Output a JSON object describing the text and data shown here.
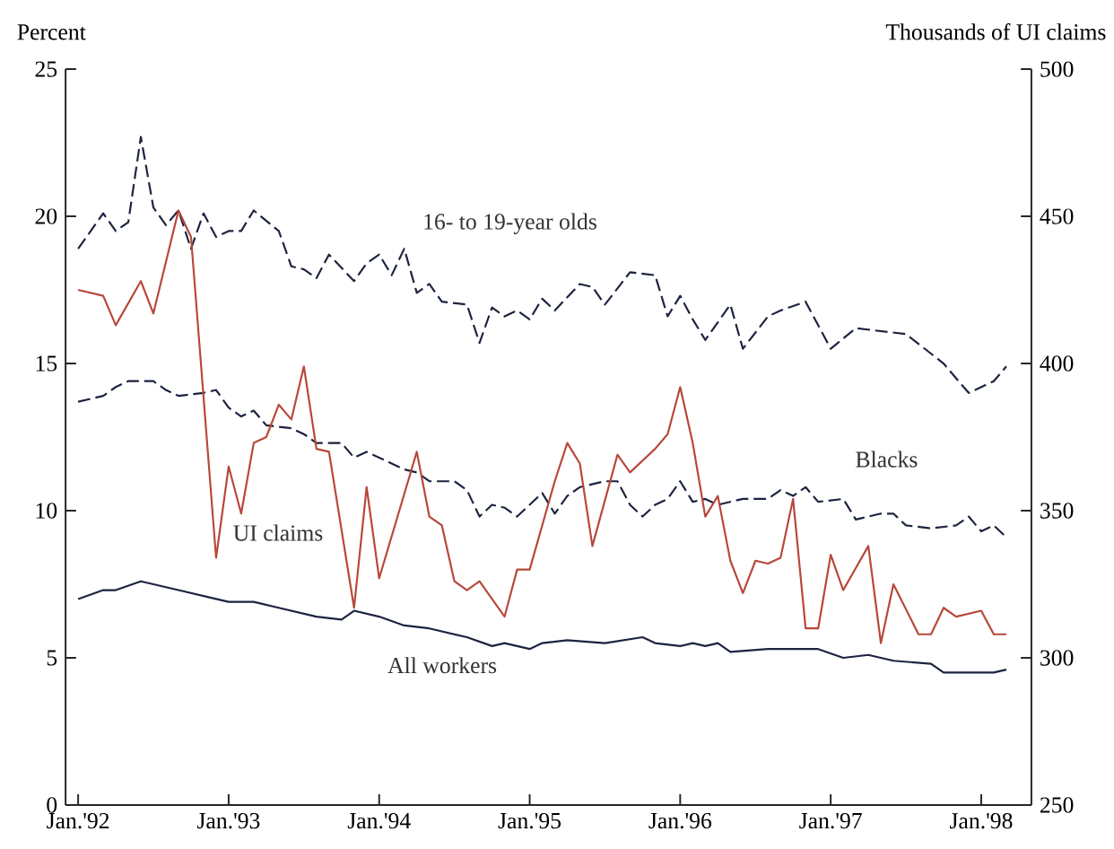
{
  "chart_data": {
    "type": "line",
    "ylabel": "Percent",
    "y2label": "Thousands of UI claims",
    "xlim": [
      "1991-12",
      "1998-05"
    ],
    "xticks": [
      {
        "value": "1992-01",
        "label": "Jan.'92"
      },
      {
        "value": "1993-01",
        "label": "Jan.'93"
      },
      {
        "value": "1994-01",
        "label": "Jan.'94"
      },
      {
        "value": "1995-01",
        "label": "Jan.'95"
      },
      {
        "value": "1996-01",
        "label": "Jan.'96"
      },
      {
        "value": "1997-01",
        "label": "Jan.'97"
      },
      {
        "value": "1998-01",
        "label": "Jan.'98"
      }
    ],
    "ylim": [
      0,
      25
    ],
    "yticks": [
      0,
      5,
      10,
      15,
      20,
      25
    ],
    "y2lim": [
      250,
      500
    ],
    "y2ticks": [
      250,
      300,
      350,
      400,
      450,
      500
    ],
    "series": [
      {
        "name": "16- to 19-year olds",
        "color": "#1c2340",
        "line_style": "dashed",
        "x": [
          "1992-01",
          "1992-03",
          "1992-04",
          "1992-05",
          "1992-06",
          "1992-07",
          "1992-08",
          "1992-09",
          "1992-10",
          "1992-11",
          "1992-12",
          "1993-01",
          "1993-02",
          "1993-03",
          "1993-05",
          "1993-06",
          "1993-07",
          "1993-08",
          "1993-09",
          "1993-11",
          "1993-12",
          "1994-01",
          "1994-02",
          "1994-03",
          "1994-04",
          "1994-05",
          "1994-06",
          "1994-08",
          "1994-09",
          "1994-10",
          "1994-11",
          "1994-12",
          "1995-01",
          "1995-02",
          "1995-03",
          "1995-05",
          "1995-06",
          "1995-07",
          "1995-09",
          "1995-11",
          "1995-12",
          "1996-01",
          "1996-02",
          "1996-03",
          "1996-05",
          "1996-06",
          "1996-08",
          "1996-09",
          "1996-11",
          "1997-01",
          "1997-03",
          "1997-07",
          "1997-10",
          "1997-12",
          "1998-02",
          "1998-03"
        ],
        "values": [
          18.9,
          20.1,
          19.5,
          19.8,
          22.7,
          20.3,
          19.7,
          20.2,
          18.9,
          20.1,
          19.3,
          19.5,
          19.5,
          20.2,
          19.5,
          18.3,
          18.2,
          17.9,
          18.7,
          17.8,
          18.4,
          18.7,
          18.0,
          18.9,
          17.4,
          17.7,
          17.1,
          17.0,
          15.7,
          16.9,
          16.6,
          16.8,
          16.5,
          17.2,
          16.8,
          17.7,
          17.6,
          17.0,
          18.1,
          18.0,
          16.6,
          17.3,
          16.5,
          15.8,
          17.0,
          15.5,
          16.6,
          16.8,
          17.1,
          15.5,
          16.2,
          16.0,
          15.0,
          14.0,
          14.4,
          14.9
        ]
      },
      {
        "name": "Blacks",
        "color": "#1c2340",
        "line_style": "dashed",
        "x": [
          "1992-01",
          "1992-03",
          "1992-04",
          "1992-05",
          "1992-07",
          "1992-08",
          "1992-09",
          "1992-11",
          "1992-12",
          "1993-01",
          "1993-02",
          "1993-03",
          "1993-04",
          "1993-06",
          "1993-07",
          "1993-08",
          "1993-10",
          "1993-11",
          "1993-12",
          "1994-02",
          "1994-03",
          "1994-04",
          "1994-05",
          "1994-07",
          "1994-08",
          "1994-09",
          "1994-10",
          "1994-11",
          "1994-12",
          "1995-02",
          "1995-03",
          "1995-04",
          "1995-05",
          "1995-07",
          "1995-08",
          "1995-09",
          "1995-10",
          "1995-11",
          "1995-12",
          "1996-01",
          "1996-02",
          "1996-03",
          "1996-04",
          "1996-06",
          "1996-08",
          "1996-09",
          "1996-10",
          "1996-11",
          "1996-12",
          "1997-02",
          "1997-03",
          "1997-05",
          "1997-06",
          "1997-07",
          "1997-09",
          "1997-11",
          "1997-12",
          "1998-01",
          "1998-02",
          "1998-03"
        ],
        "values": [
          13.7,
          13.9,
          14.2,
          14.4,
          14.4,
          14.1,
          13.9,
          14.0,
          14.1,
          13.5,
          13.2,
          13.4,
          12.9,
          12.8,
          12.6,
          12.3,
          12.3,
          11.8,
          12.0,
          11.6,
          11.4,
          11.3,
          11.0,
          11.0,
          10.7,
          9.8,
          10.2,
          10.1,
          9.8,
          10.6,
          9.9,
          10.5,
          10.8,
          11.0,
          11.0,
          10.2,
          9.8,
          10.2,
          10.4,
          11.0,
          10.3,
          10.4,
          10.2,
          10.4,
          10.4,
          10.7,
          10.5,
          10.8,
          10.3,
          10.4,
          9.7,
          9.9,
          9.9,
          9.5,
          9.4,
          9.5,
          9.8,
          9.3,
          9.5,
          9.1
        ]
      },
      {
        "name": "UI claims",
        "color": "#b8473a",
        "line_style": "solid",
        "axis": "y2",
        "x": [
          "1992-01",
          "1992-03",
          "1992-04",
          "1992-06",
          "1992-07",
          "1992-09",
          "1992-10",
          "1992-12",
          "1993-01",
          "1993-02",
          "1993-03",
          "1993-04",
          "1993-05",
          "1993-06",
          "1993-07",
          "1993-08",
          "1993-09",
          "1993-11",
          "1993-12",
          "1994-01",
          "1994-04",
          "1994-05",
          "1994-06",
          "1994-07",
          "1994-08",
          "1994-09",
          "1994-11",
          "1994-12",
          "1995-01",
          "1995-03",
          "1995-04",
          "1995-05",
          "1995-06",
          "1995-08",
          "1995-09",
          "1995-11",
          "1995-12",
          "1996-01",
          "1996-02",
          "1996-03",
          "1996-04",
          "1996-05",
          "1996-06",
          "1996-07",
          "1996-08",
          "1996-09",
          "1996-10",
          "1996-11",
          "1996-12",
          "1997-01",
          "1997-02",
          "1997-04",
          "1997-05",
          "1997-06",
          "1997-08",
          "1997-09",
          "1997-10",
          "1997-11",
          "1998-01",
          "1998-02",
          "1998-03"
        ],
        "values": [
          425,
          423,
          413,
          428,
          417,
          452,
          443,
          334,
          365,
          349,
          373,
          375,
          386,
          381,
          399,
          371,
          370,
          317,
          358,
          327,
          370,
          348,
          345,
          326,
          323,
          326,
          314,
          330,
          330,
          360,
          373,
          366,
          338,
          369,
          363,
          371,
          376,
          392,
          373,
          348,
          355,
          333,
          322,
          333,
          332,
          334,
          354,
          310,
          310,
          335,
          323,
          338,
          305,
          325,
          308,
          308,
          317,
          314,
          316,
          308,
          308
        ]
      },
      {
        "name": "All workers",
        "color": "#1c2340",
        "line_style": "solid",
        "x": [
          "1992-01",
          "1992-03",
          "1992-04",
          "1992-06",
          "1992-07",
          "1992-09",
          "1992-12",
          "1993-01",
          "1993-03",
          "1993-05",
          "1993-08",
          "1993-10",
          "1993-11",
          "1994-01",
          "1994-03",
          "1994-05",
          "1994-08",
          "1994-10",
          "1994-11",
          "1995-01",
          "1995-02",
          "1995-04",
          "1995-07",
          "1995-10",
          "1995-11",
          "1996-01",
          "1996-02",
          "1996-03",
          "1996-04",
          "1996-05",
          "1996-08",
          "1996-10",
          "1996-12",
          "1997-02",
          "1997-04",
          "1997-06",
          "1997-09",
          "1997-10",
          "1998-02",
          "1998-03"
        ],
        "values": [
          7.0,
          7.3,
          7.3,
          7.6,
          7.5,
          7.3,
          7.0,
          6.9,
          6.9,
          6.7,
          6.4,
          6.3,
          6.6,
          6.4,
          6.1,
          6.0,
          5.7,
          5.4,
          5.5,
          5.3,
          5.5,
          5.6,
          5.5,
          5.7,
          5.5,
          5.4,
          5.5,
          5.4,
          5.5,
          5.2,
          5.3,
          5.3,
          5.3,
          5.0,
          5.1,
          4.9,
          4.8,
          4.5,
          4.5,
          4.6
        ]
      }
    ]
  }
}
